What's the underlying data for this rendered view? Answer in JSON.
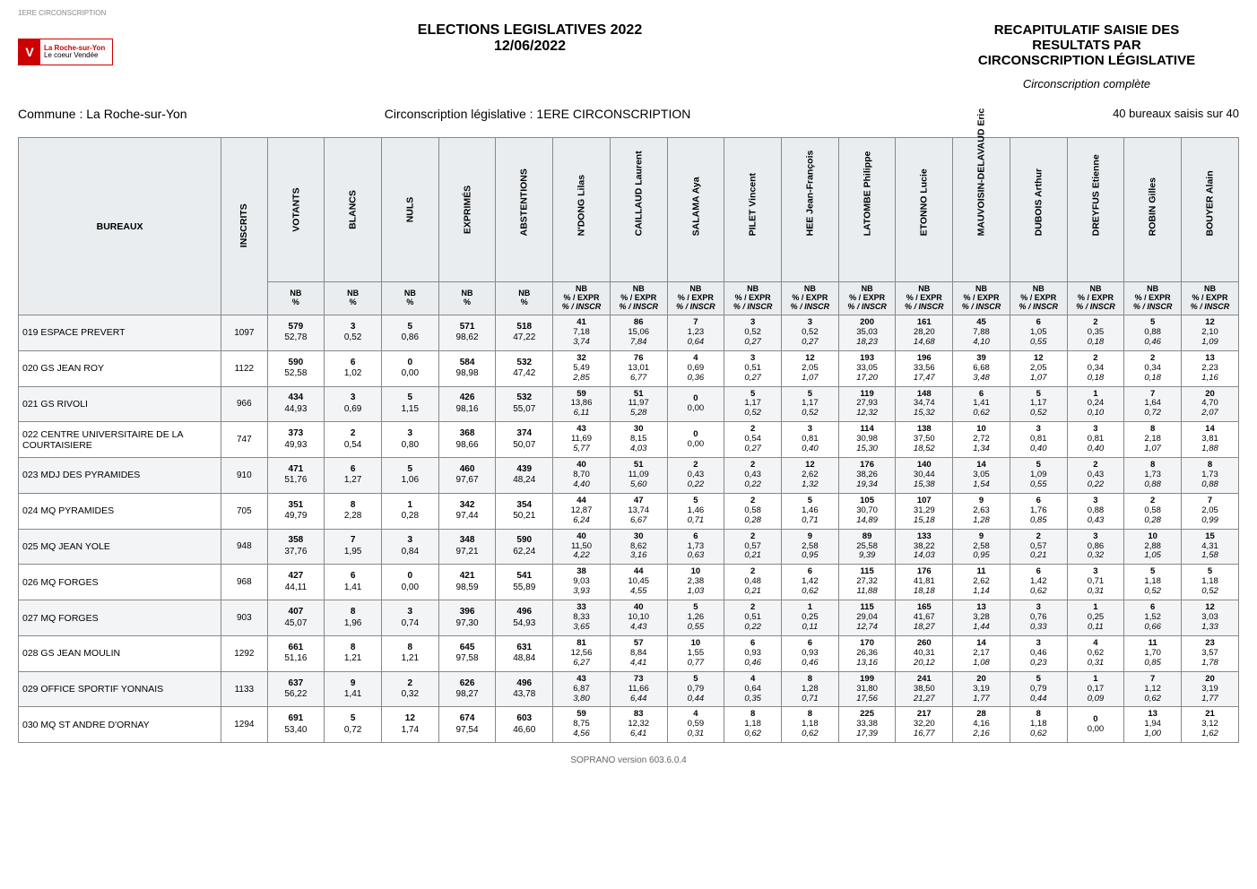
{
  "topleft": "1ERE CIRCONSCRIPTION",
  "logo": {
    "mark": "V",
    "line1": "La Roche-sur-Yon",
    "line2": "Le coeur Vendée"
  },
  "center": {
    "l1": "ELECTIONS LEGISLATIVES 2022",
    "l2": "12/06/2022"
  },
  "right": {
    "l1": "RECAPITULATIF SAISIE DES",
    "l2": "RESULTATS PAR",
    "l3": "CIRCONSCRIPTION LÉGISLATIVE",
    "sub": "Circonscription complète"
  },
  "row2": {
    "commune": "Commune : La Roche-sur-Yon",
    "circ": "Circonscription législative : 1ERE CIRCONSCRIPTION",
    "count": "40 bureaux saisis sur 40"
  },
  "colgroups": {
    "bureaux": "BUREAUX",
    "base": [
      "INSCRITS",
      "VOTANTS",
      "BLANCS",
      "NULS",
      "EXPRIMÉS",
      "ABSTENTIONS"
    ],
    "cand": [
      "N'DONG Lilas",
      "CAILLAUD Laurent",
      "SALAMA Aya",
      "PILET Vincent",
      "HEE Jean-François",
      "LATOMBE Philippe",
      "ETONNO Lucie",
      "MAUVOISIN-DELAVAUD Eric",
      "DUBOIS Arthur",
      "DREYFUS Etienne",
      "ROBIN Gilles",
      "BOUYER Alain"
    ]
  },
  "subheader": {
    "nb": "NB",
    "pct": "%",
    "expr": "% / EXPR",
    "inscr": "% / INSCR"
  },
  "rows": [
    {
      "name": "019 ESPACE PREVERT",
      "inscrits": "1097",
      "base": [
        [
          "579",
          "52,78"
        ],
        [
          "3",
          "0,52"
        ],
        [
          "5",
          "0,86"
        ],
        [
          "571",
          "98,62"
        ],
        [
          "518",
          "47,22"
        ]
      ],
      "cand": [
        [
          "41",
          "7,18",
          "3,74"
        ],
        [
          "86",
          "15,06",
          "7,84"
        ],
        [
          "7",
          "1,23",
          "0,64"
        ],
        [
          "3",
          "0,52",
          "0,27"
        ],
        [
          "3",
          "0,52",
          "0,27"
        ],
        [
          "200",
          "35,03",
          "18,23"
        ],
        [
          "161",
          "28,20",
          "14,68"
        ],
        [
          "45",
          "7,88",
          "4,10"
        ],
        [
          "6",
          "1,05",
          "0,55"
        ],
        [
          "2",
          "0,35",
          "0,18"
        ],
        [
          "5",
          "0,88",
          "0,46"
        ],
        [
          "12",
          "2,10",
          "1,09"
        ]
      ]
    },
    {
      "name": "020 GS JEAN ROY",
      "inscrits": "1122",
      "base": [
        [
          "590",
          "52,58"
        ],
        [
          "6",
          "1,02"
        ],
        [
          "0",
          "0,00"
        ],
        [
          "584",
          "98,98"
        ],
        [
          "532",
          "47,42"
        ]
      ],
      "cand": [
        [
          "32",
          "5,49",
          "2,85"
        ],
        [
          "76",
          "13,01",
          "6,77"
        ],
        [
          "4",
          "0,69",
          "0,36"
        ],
        [
          "3",
          "0,51",
          "0,27"
        ],
        [
          "12",
          "2,05",
          "1,07"
        ],
        [
          "193",
          "33,05",
          "17,20"
        ],
        [
          "196",
          "33,56",
          "17,47"
        ],
        [
          "39",
          "6,68",
          "3,48"
        ],
        [
          "12",
          "2,05",
          "1,07"
        ],
        [
          "2",
          "0,34",
          "0,18"
        ],
        [
          "2",
          "0,34",
          "0,18"
        ],
        [
          "13",
          "2,23",
          "1,16"
        ]
      ]
    },
    {
      "name": "021 GS RIVOLI",
      "inscrits": "966",
      "base": [
        [
          "434",
          "44,93"
        ],
        [
          "3",
          "0,69"
        ],
        [
          "5",
          "1,15"
        ],
        [
          "426",
          "98,16"
        ],
        [
          "532",
          "55,07"
        ]
      ],
      "cand": [
        [
          "59",
          "13,86",
          "6,11"
        ],
        [
          "51",
          "11,97",
          "5,28"
        ],
        [
          "0",
          "0,00",
          ""
        ],
        [
          "5",
          "1,17",
          "0,52"
        ],
        [
          "5",
          "1,17",
          "0,52"
        ],
        [
          "119",
          "27,93",
          "12,32"
        ],
        [
          "148",
          "34,74",
          "15,32"
        ],
        [
          "6",
          "1,41",
          "0,62"
        ],
        [
          "5",
          "1,17",
          "0,52"
        ],
        [
          "1",
          "0,24",
          "0,10"
        ],
        [
          "7",
          "1,64",
          "0,72"
        ],
        [
          "20",
          "4,70",
          "2,07"
        ]
      ]
    },
    {
      "name": "022 CENTRE UNIVERSITAIRE DE LA COURTAISIERE",
      "inscrits": "747",
      "base": [
        [
          "373",
          "49,93"
        ],
        [
          "2",
          "0,54"
        ],
        [
          "3",
          "0,80"
        ],
        [
          "368",
          "98,66"
        ],
        [
          "374",
          "50,07"
        ]
      ],
      "cand": [
        [
          "43",
          "11,69",
          "5,77"
        ],
        [
          "30",
          "8,15",
          "4,03"
        ],
        [
          "0",
          "0,00",
          ""
        ],
        [
          "2",
          "0,54",
          "0,27"
        ],
        [
          "3",
          "0,81",
          "0,40"
        ],
        [
          "114",
          "30,98",
          "15,30"
        ],
        [
          "138",
          "37,50",
          "18,52"
        ],
        [
          "10",
          "2,72",
          "1,34"
        ],
        [
          "3",
          "0,81",
          "0,40"
        ],
        [
          "3",
          "0,81",
          "0,40"
        ],
        [
          "8",
          "2,18",
          "1,07"
        ],
        [
          "14",
          "3,81",
          "1,88"
        ]
      ]
    },
    {
      "name": "023 MDJ DES PYRAMIDES",
      "inscrits": "910",
      "base": [
        [
          "471",
          "51,76"
        ],
        [
          "6",
          "1,27"
        ],
        [
          "5",
          "1,06"
        ],
        [
          "460",
          "97,67"
        ],
        [
          "439",
          "48,24"
        ]
      ],
      "cand": [
        [
          "40",
          "8,70",
          "4,40"
        ],
        [
          "51",
          "11,09",
          "5,60"
        ],
        [
          "2",
          "0,43",
          "0,22"
        ],
        [
          "2",
          "0,43",
          "0,22"
        ],
        [
          "12",
          "2,62",
          "1,32"
        ],
        [
          "176",
          "38,26",
          "19,34"
        ],
        [
          "140",
          "30,44",
          "15,38"
        ],
        [
          "14",
          "3,05",
          "1,54"
        ],
        [
          "5",
          "1,09",
          "0,55"
        ],
        [
          "2",
          "0,43",
          "0,22"
        ],
        [
          "8",
          "1,73",
          "0,88"
        ],
        [
          "8",
          "1,73",
          "0,88"
        ]
      ]
    },
    {
      "name": "024 MQ PYRAMIDES",
      "inscrits": "705",
      "base": [
        [
          "351",
          "49,79"
        ],
        [
          "8",
          "2,28"
        ],
        [
          "1",
          "0,28"
        ],
        [
          "342",
          "97,44"
        ],
        [
          "354",
          "50,21"
        ]
      ],
      "cand": [
        [
          "44",
          "12,87",
          "6,24"
        ],
        [
          "47",
          "13,74",
          "6,67"
        ],
        [
          "5",
          "1,46",
          "0,71"
        ],
        [
          "2",
          "0,58",
          "0,28"
        ],
        [
          "5",
          "1,46",
          "0,71"
        ],
        [
          "105",
          "30,70",
          "14,89"
        ],
        [
          "107",
          "31,29",
          "15,18"
        ],
        [
          "9",
          "2,63",
          "1,28"
        ],
        [
          "6",
          "1,76",
          "0,85"
        ],
        [
          "3",
          "0,88",
          "0,43"
        ],
        [
          "2",
          "0,58",
          "0,28"
        ],
        [
          "7",
          "2,05",
          "0,99"
        ]
      ]
    },
    {
      "name": "025 MQ JEAN YOLE",
      "inscrits": "948",
      "base": [
        [
          "358",
          "37,76"
        ],
        [
          "7",
          "1,95"
        ],
        [
          "3",
          "0,84"
        ],
        [
          "348",
          "97,21"
        ],
        [
          "590",
          "62,24"
        ]
      ],
      "cand": [
        [
          "40",
          "11,50",
          "4,22"
        ],
        [
          "30",
          "8,62",
          "3,16"
        ],
        [
          "6",
          "1,73",
          "0,63"
        ],
        [
          "2",
          "0,57",
          "0,21"
        ],
        [
          "9",
          "2,58",
          "0,95"
        ],
        [
          "89",
          "25,58",
          "9,39"
        ],
        [
          "133",
          "38,22",
          "14,03"
        ],
        [
          "9",
          "2,58",
          "0,95"
        ],
        [
          "2",
          "0,57",
          "0,21"
        ],
        [
          "3",
          "0,86",
          "0,32"
        ],
        [
          "10",
          "2,88",
          "1,05"
        ],
        [
          "15",
          "4,31",
          "1,58"
        ]
      ]
    },
    {
      "name": "026 MQ FORGES",
      "inscrits": "968",
      "base": [
        [
          "427",
          "44,11"
        ],
        [
          "6",
          "1,41"
        ],
        [
          "0",
          "0,00"
        ],
        [
          "421",
          "98,59"
        ],
        [
          "541",
          "55,89"
        ]
      ],
      "cand": [
        [
          "38",
          "9,03",
          "3,93"
        ],
        [
          "44",
          "10,45",
          "4,55"
        ],
        [
          "10",
          "2,38",
          "1,03"
        ],
        [
          "2",
          "0,48",
          "0,21"
        ],
        [
          "6",
          "1,42",
          "0,62"
        ],
        [
          "115",
          "27,32",
          "11,88"
        ],
        [
          "176",
          "41,81",
          "18,18"
        ],
        [
          "11",
          "2,62",
          "1,14"
        ],
        [
          "6",
          "1,42",
          "0,62"
        ],
        [
          "3",
          "0,71",
          "0,31"
        ],
        [
          "5",
          "1,18",
          "0,52"
        ],
        [
          "5",
          "1,18",
          "0,52"
        ]
      ]
    },
    {
      "name": "027 MQ FORGES",
      "inscrits": "903",
      "base": [
        [
          "407",
          "45,07"
        ],
        [
          "8",
          "1,96"
        ],
        [
          "3",
          "0,74"
        ],
        [
          "396",
          "97,30"
        ],
        [
          "496",
          "54,93"
        ]
      ],
      "cand": [
        [
          "33",
          "8,33",
          "3,65"
        ],
        [
          "40",
          "10,10",
          "4,43"
        ],
        [
          "5",
          "1,26",
          "0,55"
        ],
        [
          "2",
          "0,51",
          "0,22"
        ],
        [
          "1",
          "0,25",
          "0,11"
        ],
        [
          "115",
          "29,04",
          "12,74"
        ],
        [
          "165",
          "41,67",
          "18,27"
        ],
        [
          "13",
          "3,28",
          "1,44"
        ],
        [
          "3",
          "0,76",
          "0,33"
        ],
        [
          "1",
          "0,25",
          "0,11"
        ],
        [
          "6",
          "1,52",
          "0,66"
        ],
        [
          "12",
          "3,03",
          "1,33"
        ]
      ]
    },
    {
      "name": "028 GS JEAN MOULIN",
      "inscrits": "1292",
      "base": [
        [
          "661",
          "51,16"
        ],
        [
          "8",
          "1,21"
        ],
        [
          "8",
          "1,21"
        ],
        [
          "645",
          "97,58"
        ],
        [
          "631",
          "48,84"
        ]
      ],
      "cand": [
        [
          "81",
          "12,56",
          "6,27"
        ],
        [
          "57",
          "8,84",
          "4,41"
        ],
        [
          "10",
          "1,55",
          "0,77"
        ],
        [
          "6",
          "0,93",
          "0,46"
        ],
        [
          "6",
          "0,93",
          "0,46"
        ],
        [
          "170",
          "26,36",
          "13,16"
        ],
        [
          "260",
          "40,31",
          "20,12"
        ],
        [
          "14",
          "2,17",
          "1,08"
        ],
        [
          "3",
          "0,46",
          "0,23"
        ],
        [
          "4",
          "0,62",
          "0,31"
        ],
        [
          "11",
          "1,70",
          "0,85"
        ],
        [
          "23",
          "3,57",
          "1,78"
        ]
      ]
    },
    {
      "name": "029 OFFICE SPORTIF YONNAIS",
      "inscrits": "1133",
      "base": [
        [
          "637",
          "56,22"
        ],
        [
          "9",
          "1,41"
        ],
        [
          "2",
          "0,32"
        ],
        [
          "626",
          "98,27"
        ],
        [
          "496",
          "43,78"
        ]
      ],
      "cand": [
        [
          "43",
          "6,87",
          "3,80"
        ],
        [
          "73",
          "11,66",
          "6,44"
        ],
        [
          "5",
          "0,79",
          "0,44"
        ],
        [
          "4",
          "0,64",
          "0,35"
        ],
        [
          "8",
          "1,28",
          "0,71"
        ],
        [
          "199",
          "31,80",
          "17,56"
        ],
        [
          "241",
          "38,50",
          "21,27"
        ],
        [
          "20",
          "3,19",
          "1,77"
        ],
        [
          "5",
          "0,79",
          "0,44"
        ],
        [
          "1",
          "0,17",
          "0,09"
        ],
        [
          "7",
          "1,12",
          "0,62"
        ],
        [
          "20",
          "3,19",
          "1,77"
        ]
      ]
    },
    {
      "name": "030 MQ ST ANDRE D'ORNAY",
      "inscrits": "1294",
      "base": [
        [
          "691",
          "53,40"
        ],
        [
          "5",
          "0,72"
        ],
        [
          "12",
          "1,74"
        ],
        [
          "674",
          "97,54"
        ],
        [
          "603",
          "46,60"
        ]
      ],
      "cand": [
        [
          "59",
          "8,75",
          "4,56"
        ],
        [
          "83",
          "12,32",
          "6,41"
        ],
        [
          "4",
          "0,59",
          "0,31"
        ],
        [
          "8",
          "1,18",
          "0,62"
        ],
        [
          "8",
          "1,18",
          "0,62"
        ],
        [
          "225",
          "33,38",
          "17,39"
        ],
        [
          "217",
          "32,20",
          "16,77"
        ],
        [
          "28",
          "4,16",
          "2,16"
        ],
        [
          "8",
          "1,18",
          "0,62"
        ],
        [
          "0",
          "0,00",
          ""
        ],
        [
          "13",
          "1,94",
          "1,00"
        ],
        [
          "21",
          "3,12",
          "1,62"
        ]
      ]
    }
  ],
  "footer": "SOPRANO version 603.6.0.4"
}
